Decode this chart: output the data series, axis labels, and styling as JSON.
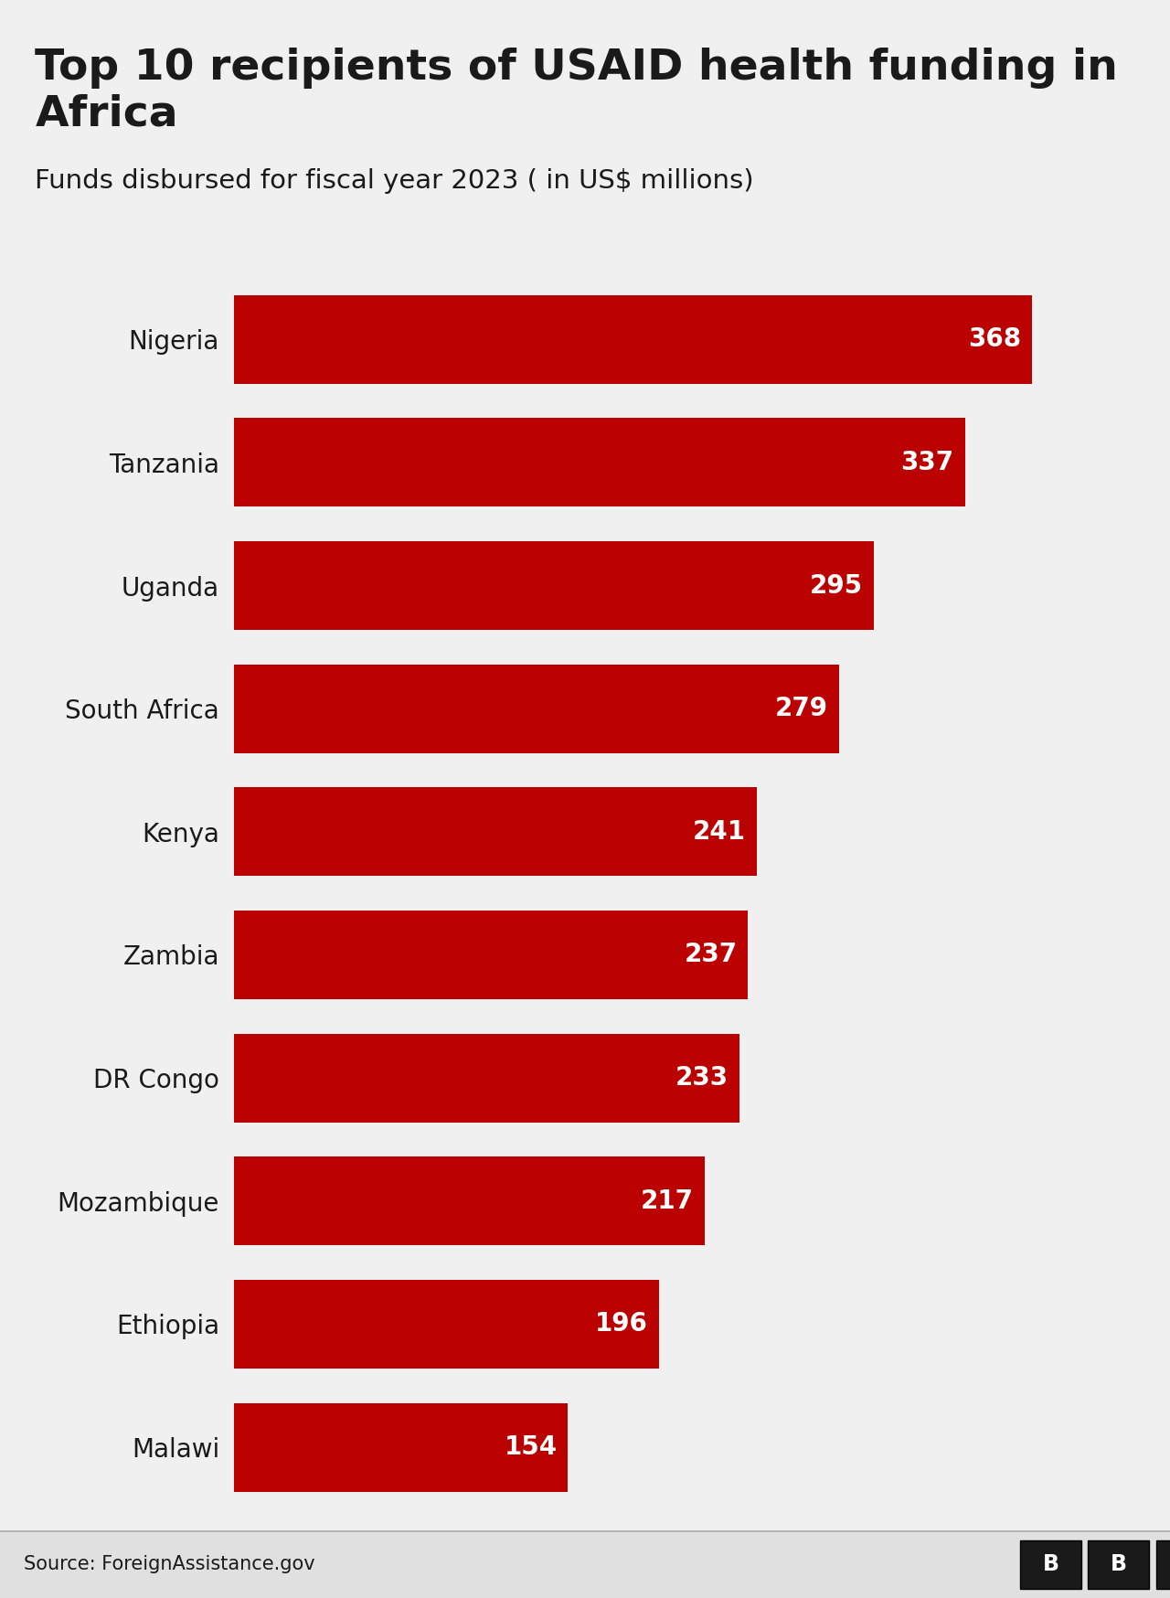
{
  "title_line1": "Top 10 recipients of USAID health funding in",
  "title_line2": "Africa",
  "subtitle": "Funds disbursed for fiscal year 2023 ( in US$ millions)",
  "countries": [
    "Nigeria",
    "Tanzania",
    "Uganda",
    "South Africa",
    "Kenya",
    "Zambia",
    "DR Congo",
    "Mozambique",
    "Ethiopia",
    "Malawi"
  ],
  "values": [
    368,
    337,
    295,
    279,
    241,
    237,
    233,
    217,
    196,
    154
  ],
  "bar_color": "#bb0000",
  "label_color": "#ffffff",
  "country_label_color": "#1a1a1a",
  "background_color": "#f0f0f0",
  "footer_bg_color": "#e0e0e0",
  "source_text": "Source: ForeignAssistance.gov",
  "title_fontsize": 34,
  "subtitle_fontsize": 21,
  "country_fontsize": 20,
  "value_fontsize": 20,
  "source_fontsize": 15,
  "bbc_fontsize": 17,
  "xlim": [
    0,
    410
  ]
}
